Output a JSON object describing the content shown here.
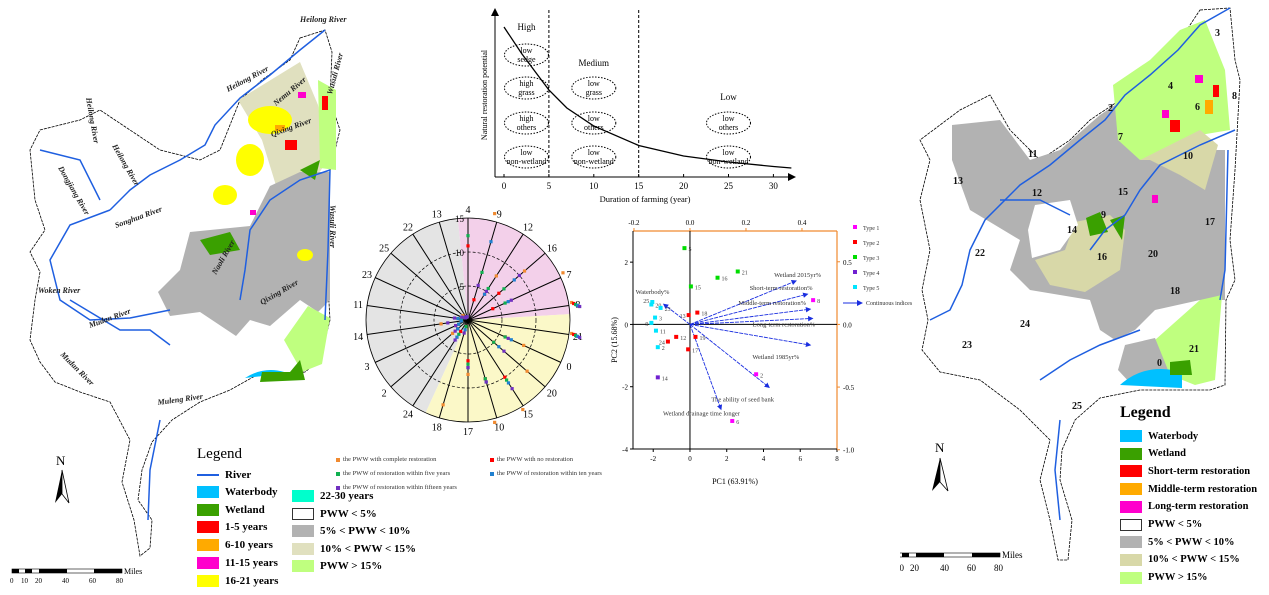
{
  "left_map": {
    "river_labels": [
      "Heilong River",
      "Heilong River",
      "Heilong River",
      "Heilong River",
      "Nemu River",
      "Qixing River",
      "Wusuli River",
      "Naoli River",
      "Qixing River",
      "Wusuli River",
      "Dongjiang River",
      "Songhua River",
      "Woken River",
      "Mudan River",
      "Muleng River",
      "Mudan River"
    ],
    "legend": {
      "title": "Legend",
      "items": [
        {
          "label": "River",
          "color": "#1f5fe0",
          "kind": "line"
        },
        {
          "label": "Waterbody",
          "color": "#00c0ff"
        },
        {
          "label": "Wetland",
          "color": "#3aa000"
        },
        {
          "label": "1-5 years",
          "color": "#ff0000"
        },
        {
          "label": "6-10 years",
          "color": "#ffaa00"
        },
        {
          "label": "11-15 years",
          "color": "#ff00cc"
        },
        {
          "label": "16-21 years",
          "color": "#ffff00"
        },
        {
          "label": "22-30 years",
          "color": "#00ffcc"
        },
        {
          "label": "PWW < 5%",
          "color": "#ffffff"
        },
        {
          "label": "5% < PWW < 10%",
          "color": "#b2b2b2"
        },
        {
          "label": "10% < PWW < 15%",
          "color": "#e0e0bf"
        },
        {
          "label": "PWW > 15%",
          "color": "#bfff7f"
        }
      ]
    },
    "north": "N",
    "scale": {
      "unit": "Miles",
      "ticks": [
        "0",
        "10",
        "20",
        "40",
        "60",
        "80"
      ]
    }
  },
  "right_map": {
    "subbasin_labels": [
      "3",
      "4",
      "6",
      "8",
      "7",
      "2",
      "11",
      "10",
      "13",
      "12",
      "15",
      "9",
      "17",
      "14",
      "16",
      "20",
      "22",
      "18",
      "24",
      "23",
      "21",
      "0",
      "25"
    ],
    "legend": {
      "title": "Legend",
      "items": [
        {
          "label": "Waterbody",
          "color": "#00c0ff"
        },
        {
          "label": "Wetland",
          "color": "#3aa000"
        },
        {
          "label": "Short-term restoration",
          "color": "#ff0000"
        },
        {
          "label": "Middle-term restoration",
          "color": "#ffaa00"
        },
        {
          "label": "Long-term restoration",
          "color": "#ff00cc"
        },
        {
          "label": "PWW < 5%",
          "color": "#ffffff"
        },
        {
          "label": "5% < PWW < 10%",
          "color": "#b2b2b2"
        },
        {
          "label": "10% < PWW < 15%",
          "color": "#d8d8a8"
        },
        {
          "label": "PWW > 15%",
          "color": "#bfff7f"
        }
      ]
    },
    "north": "N",
    "scale": {
      "unit": "Miles",
      "ticks": [
        "0",
        "10",
        "20",
        "40",
        "60",
        "80"
      ]
    }
  },
  "chart_data": [
    {
      "type": "line",
      "xlabel": "Duration of farming (year)",
      "ylabel": "Natural restoration potential",
      "xlim": [
        0,
        32
      ],
      "x_ticks": [
        "0",
        "5",
        "10",
        "15",
        "20",
        "25",
        "30"
      ],
      "curve": {
        "x": [
          0,
          2,
          4,
          5,
          7,
          10,
          15,
          20,
          25,
          30,
          32
        ],
        "y": [
          1.0,
          0.82,
          0.66,
          0.58,
          0.46,
          0.34,
          0.21,
          0.14,
          0.1,
          0.07,
          0.06
        ]
      },
      "dividers": [
        5,
        15
      ],
      "zones": [
        {
          "label": "High",
          "items": [
            "low sedge",
            "high grass",
            "high others",
            "low non-wetland"
          ]
        },
        {
          "label": "Medium",
          "items": [
            "low grass",
            "low others",
            "low non-wetland"
          ]
        },
        {
          "label": "Low",
          "items": [
            "low others",
            "low non-wetland"
          ]
        }
      ]
    },
    {
      "type": "radar",
      "axes": [
        "4",
        "9",
        "12",
        "16",
        "7",
        "8",
        "21",
        "0",
        "20",
        "15",
        "10",
        "17",
        "18",
        "24",
        "2",
        "3",
        "14",
        "11",
        "23",
        "25",
        "22",
        "13"
      ],
      "r_ticks": [
        "0",
        "5",
        "10",
        "15"
      ],
      "rlim": [
        0,
        15
      ],
      "sectors": [
        {
          "from": "4",
          "to": "8",
          "color": "#f3d0ea"
        },
        {
          "from": "8",
          "to": "18",
          "color": "#fbf8c8"
        },
        {
          "from": "18",
          "to": "4",
          "color": "#e4e4e4"
        }
      ],
      "series": [
        {
          "name": "the PWW with complete restoration",
          "color": "#f08a30",
          "values": [
            null,
            16,
            7.7,
            11,
            16,
            16,
            16,
            9,
            11.5,
            16,
            16,
            8,
            13,
            3,
            3,
            2,
            4,
            1.5,
            1,
            1,
            0.5,
            0.5
          ]
        },
        {
          "name": "the PWW with no restoration",
          "color": "#ff0000",
          "values": [
            10.9,
            3.1,
            4.5,
            6,
            4,
            16,
            16,
            6,
            5,
            10,
            9,
            6,
            1,
            2,
            2,
            1.5,
            1,
            1,
            1,
            0.5,
            0.5,
            0.5
          ]
        },
        {
          "name": "the PWW of restoration within five years",
          "color": "#10b050",
          "values": [
            12.4,
            7.3,
            5.5,
            7,
            6,
            16,
            16,
            6,
            5,
            10.5,
            9,
            6.5,
            1,
            2.5,
            2,
            1.5,
            1,
            1,
            1,
            0.5,
            0.5,
            0.5
          ]
        },
        {
          "name": "the PWW of restoration within ten years",
          "color": "#2080d0",
          "values": [
            null,
            12,
            4.5,
            9,
            6.5,
            16,
            16,
            7,
            6,
            11,
            9.5,
            7,
            1.5,
            3,
            2,
            1.5,
            1,
            1.5,
            1,
            0.5,
            0.5,
            0.5
          ]
        },
        {
          "name": "the PWW of restoration within fifteen years",
          "color": "#7030c0",
          "values": [
            null,
            5.3,
            5,
            10,
            7,
            16,
            16,
            6.5,
            7,
            12,
            9.5,
            7,
            2,
            3.5,
            2.5,
            2,
            3,
            2,
            1,
            0.5,
            0.5,
            0.5
          ]
        }
      ]
    },
    {
      "type": "scatter",
      "xlabel": "PC1 (63.91%)",
      "ylabel": "PC2 (15.68%)",
      "xlim": [
        -3.1,
        8
      ],
      "ylim": [
        -4,
        3
      ],
      "x_ticks": [
        -2,
        0,
        2,
        4,
        6,
        8
      ],
      "y_ticks": [
        -4,
        -2,
        0,
        2
      ],
      "top_ticks": [
        "-0.2",
        "0.0",
        "0.2",
        "0.4"
      ],
      "right_ticks": [
        "0.5",
        "0.0",
        "-0.5",
        "-1.0"
      ],
      "loading_xlim": [
        -0.28,
        0.54
      ],
      "loading_ylim": [
        -1.0,
        0.76
      ],
      "series": [
        {
          "name": "Type 1",
          "color": "#ff00ff",
          "points": [
            {
              "label": "8",
              "x": 6.7,
              "y": 0.78
            },
            {
              "label": "2",
              "x": 3.6,
              "y": -1.6
            },
            {
              "label": "6",
              "x": 2.3,
              "y": -3.1
            }
          ]
        },
        {
          "name": "Type 2",
          "color": "#ff0000",
          "points": [
            {
              "label": "18",
              "x": 0.4,
              "y": 0.38
            },
            {
              "label": "13",
              "x": -0.07,
              "y": 0.3
            },
            {
              "label": "19",
              "x": 0.3,
              "y": -0.4
            },
            {
              "label": "12",
              "x": -0.75,
              "y": -0.4
            },
            {
              "label": "24",
              "x": -1.2,
              "y": -0.55
            },
            {
              "label": "17",
              "x": -0.1,
              "y": -0.8
            }
          ]
        },
        {
          "name": "Type 3",
          "color": "#00dd00",
          "points": [
            {
              "label": "5",
              "x": -0.3,
              "y": 2.45
            },
            {
              "label": "16",
              "x": 1.5,
              "y": 1.5
            },
            {
              "label": "21",
              "x": 2.6,
              "y": 1.7
            },
            {
              "label": "15",
              "x": 0.05,
              "y": 1.22
            }
          ]
        },
        {
          "name": "Type 4",
          "color": "#7020d0",
          "points": [
            {
              "label": "14",
              "x": -1.75,
              "y": -1.7
            }
          ]
        },
        {
          "name": "Type 5",
          "color": "#00e5ff",
          "points": [
            {
              "label": "25",
              "x": -2.05,
              "y": 0.72
            },
            {
              "label": "20",
              "x": -2.1,
              "y": 0.64
            },
            {
              "label": "23",
              "x": -1.6,
              "y": 0.53
            },
            {
              "label": "3",
              "x": -1.9,
              "y": 0.22
            },
            {
              "label": "9",
              "x": -2.1,
              "y": 0.05
            },
            {
              "label": "11",
              "x": -1.85,
              "y": -0.2
            },
            {
              "label": "2",
              "x": -1.75,
              "y": -0.73
            }
          ]
        }
      ],
      "loadings_legend": "Continuous indices",
      "loadings": [
        {
          "label": "Wetland 2015yr%",
          "x": 0.379,
          "y": 0.348
        },
        {
          "label": "Short-term restoration%",
          "x": 0.42,
          "y": 0.242
        },
        {
          "label": "Middle-term restoration%",
          "x": 0.43,
          "y": 0.122
        },
        {
          "label": "Long-term restoration%",
          "x": 0.438,
          "y": 0.048
        },
        {
          "label": "Wetland 1985yr%",
          "x": 0.43,
          "y": -0.165
        },
        {
          "label": "The ability of seed bank",
          "x": 0.283,
          "y": -0.503
        },
        {
          "label": "Wetland drainage time longer",
          "x": 0.111,
          "y": -0.678
        },
        {
          "label": "Waterbody%",
          "x": -0.094,
          "y": 0.162
        }
      ]
    }
  ]
}
